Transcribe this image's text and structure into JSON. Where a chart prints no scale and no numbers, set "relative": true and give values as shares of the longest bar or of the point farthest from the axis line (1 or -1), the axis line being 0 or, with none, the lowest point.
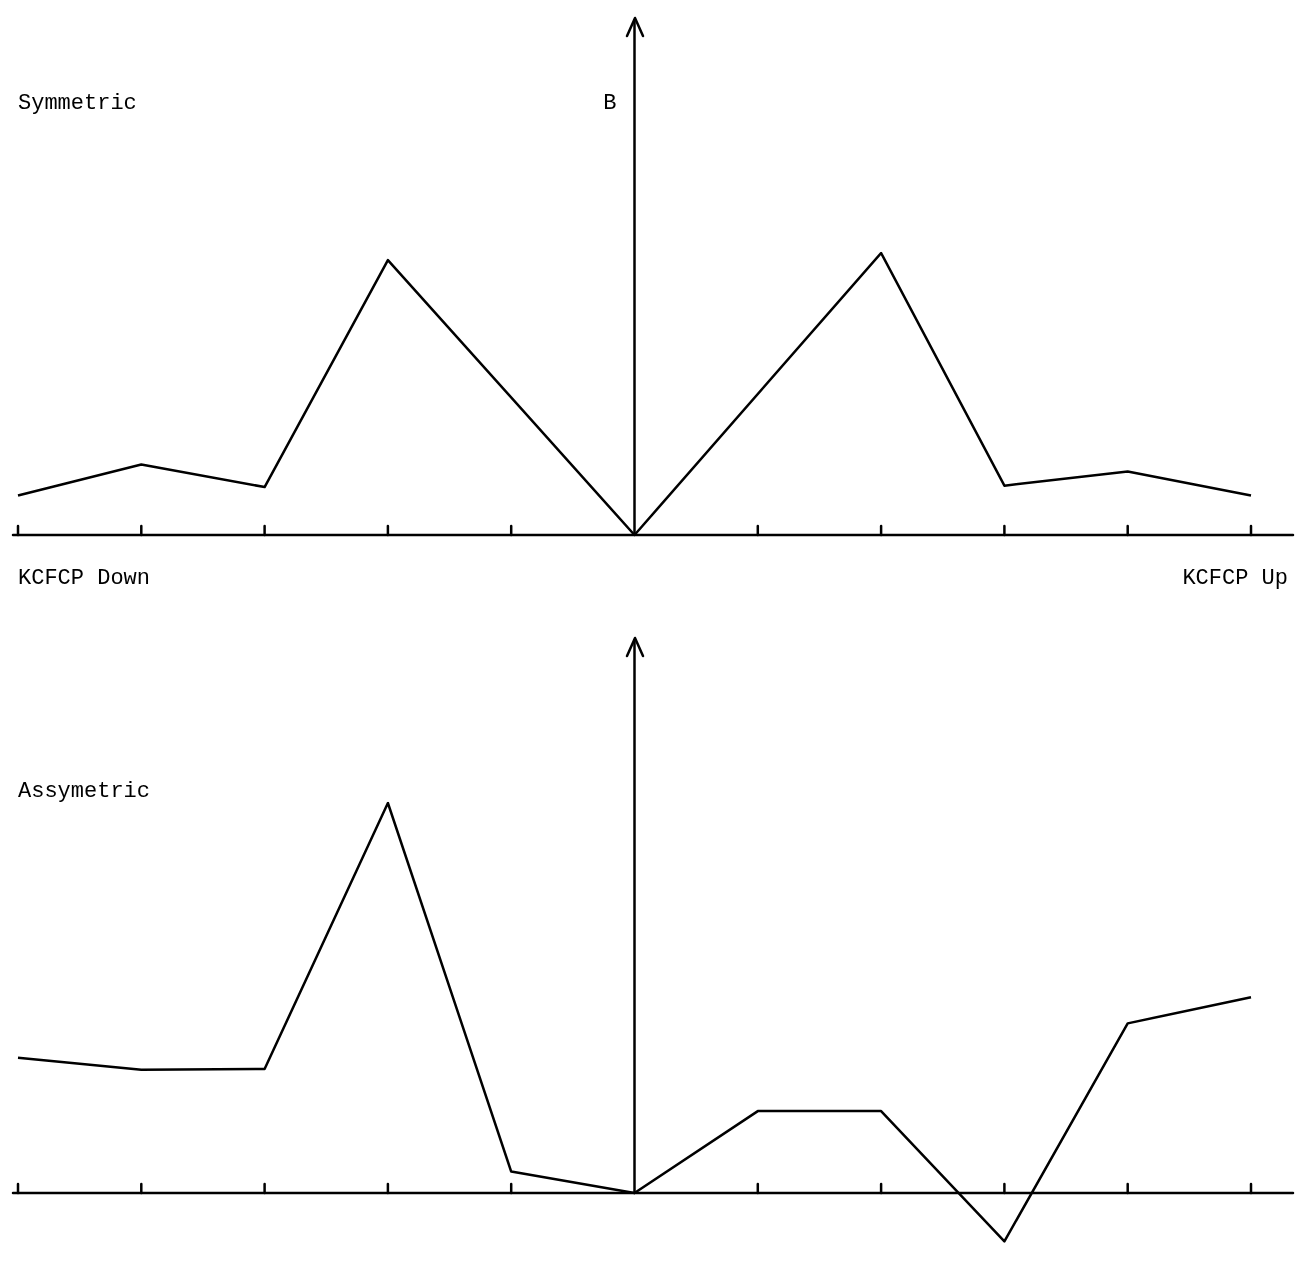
{
  "chart_data": [
    {
      "type": "line",
      "title": "Symmetric",
      "ylabel": "B",
      "annotations": [
        "KCFCP Down",
        "KCFCP Up"
      ],
      "categories": [
        null,
        null,
        null,
        null,
        null,
        null,
        null,
        null,
        null,
        null,
        null
      ],
      "values": [
        0.14,
        0.25,
        0.17,
        0.975,
        null,
        0,
        null,
        1,
        0.175,
        0.225,
        0.14
      ],
      "color": "#000000",
      "relative": true,
      "tick_labels": false,
      "grid": false,
      "legend": false,
      "marker": "none"
    },
    {
      "type": "line",
      "title": "Assymetric",
      "categories": [
        null,
        null,
        null,
        null,
        null,
        null,
        null,
        null,
        null,
        null,
        null
      ],
      "values": [
        0.347,
        0.316,
        0.318,
        1,
        0.055,
        0,
        0.21,
        0.21,
        -0.124,
        0.435,
        0.502
      ],
      "color": "#000000",
      "relative": true,
      "tick_labels": false,
      "grid": false,
      "legend": false,
      "marker": "none"
    }
  ]
}
